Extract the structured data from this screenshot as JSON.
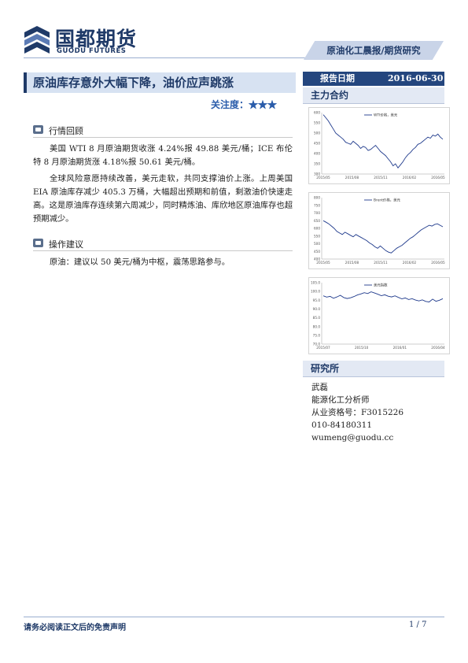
{
  "header": {
    "brand_cn": "国都期货",
    "brand_en": "GUODU FUTURES",
    "report_type": "原油化工晨报/期货研究"
  },
  "title": {
    "text": "原油库存意外大幅下降，油价应声跳涨",
    "attention_label": "关注度：",
    "attention_stars": 3
  },
  "report": {
    "date_label": "报告日期",
    "date_value": "2016-06-30"
  },
  "sections": {
    "review_heading": "行情回顾",
    "review_para1": "美国 WTI 8 月原油期货收涨 4.24%报 49.88 美元/桶；ICE 布伦特 8 月原油期货涨 4.18%报 50.61 美元/桶。",
    "review_para2": "全球风险意愿持续改善，美元走软，共同支撑油价上涨。上周美国 EIA 原油库存减少 405.3 万桶，大幅超出预期和前值，剩激油价快速走高。这是原油库存连续第六周减少，同时精炼油、库欣地区原油库存也超预期减少。",
    "advice_heading": "操作建议",
    "advice_para": "原油：建议以 50 美元/桶为中枢，震荡思路参与。"
  },
  "sidebar": {
    "contracts_label": "主力合约",
    "institute_label": "研究所",
    "analyst": {
      "name": "武磊",
      "title": "能源化工分析师",
      "license": "从业资格号：F3015226",
      "phone": "010-84180311",
      "email": "wumeng@guodu.cc"
    }
  },
  "chart_data": [
    {
      "type": "line",
      "legend": "WTI价格，美元",
      "y_ticks": [
        "600",
        "550",
        "500",
        "450",
        "400",
        "350",
        "300"
      ],
      "ylim": [
        300,
        600
      ],
      "x_ticks": [
        "2015/05",
        "2015/08",
        "2015/11",
        "2016/02",
        "2016/05"
      ],
      "values": [
        590,
        575,
        560,
        540,
        520,
        500,
        490,
        480,
        470,
        455,
        450,
        445,
        460,
        450,
        440,
        425,
        435,
        430,
        415,
        420,
        430,
        440,
        425,
        410,
        400,
        390,
        375,
        360,
        340,
        350,
        330,
        345,
        360,
        380,
        395,
        405,
        420,
        430,
        445,
        450,
        460,
        470,
        480,
        475,
        490,
        485,
        495,
        480,
        470
      ]
    },
    {
      "type": "line",
      "legend": "Brent价格，美元",
      "y_ticks": [
        "800",
        "750",
        "700",
        "650",
        "600",
        "550",
        "500",
        "450",
        "400"
      ],
      "ylim": [
        400,
        800
      ],
      "x_ticks": [
        "2015/05",
        "2015/08",
        "2015/11",
        "2016/02",
        "2016/05"
      ],
      "values": [
        650,
        640,
        630,
        615,
        600,
        580,
        570,
        560,
        575,
        565,
        555,
        545,
        560,
        550,
        540,
        530,
        520,
        505,
        495,
        480,
        470,
        485,
        470,
        455,
        445,
        440,
        455,
        470,
        480,
        490,
        505,
        520,
        535,
        545,
        560,
        575,
        590,
        600,
        610,
        620,
        615,
        625,
        630,
        620,
        610
      ]
    },
    {
      "type": "line",
      "legend": "美元指数",
      "y_ticks": [
        "105.0",
        "100.0",
        "95.0",
        "90.0",
        "85.0",
        "80.0",
        "75.0",
        "70.0"
      ],
      "ylim": [
        70,
        105
      ],
      "x_ticks": [
        "2015/07",
        "2015/10",
        "2016/01",
        "2016/04"
      ],
      "values": [
        97.5,
        96.8,
        97.2,
        96.1,
        96.9,
        97.8,
        96.5,
        96.0,
        96.4,
        97.1,
        98.0,
        98.6,
        99.3,
        98.8,
        99.8,
        99.1,
        98.4,
        97.6,
        98.1,
        97.3,
        96.9,
        97.5,
        96.6,
        95.8,
        96.3,
        95.4,
        95.9,
        95.1,
        94.6,
        95.2,
        94.3,
        94.0,
        95.6,
        94.4,
        95.0,
        95.9
      ]
    }
  ],
  "footer": {
    "disclaimer": "请务必阅读正文后的免责声明",
    "page": "1 / 7"
  }
}
